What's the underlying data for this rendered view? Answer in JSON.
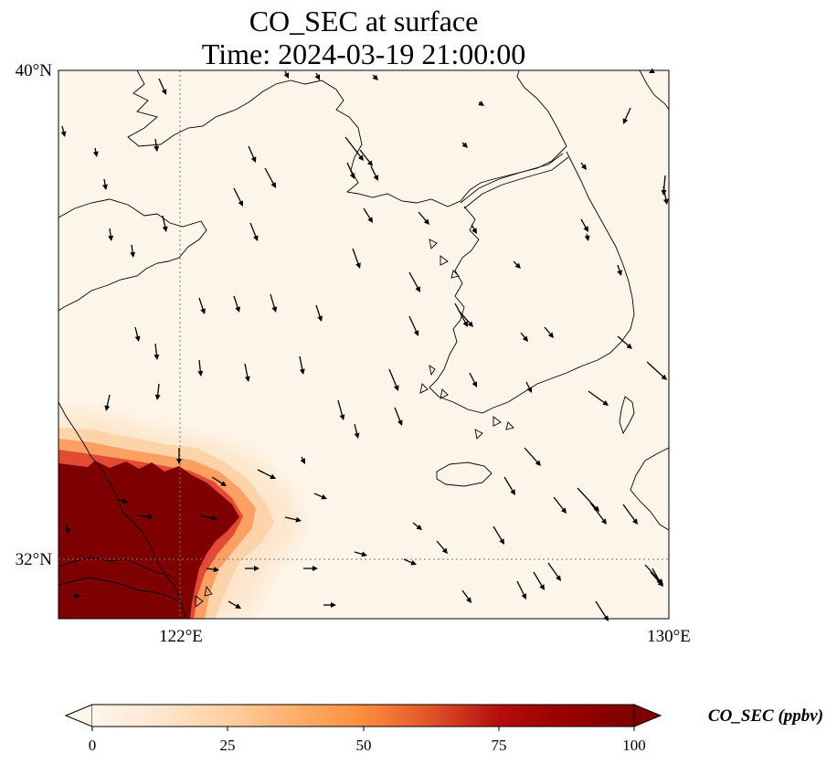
{
  "map": {
    "title_line1": "CO_SEC at surface",
    "title_line2": "Time: 2024-03-19 21:00:00",
    "lat_ticks": [
      {
        "value": 40,
        "label": "40°N"
      },
      {
        "value": 32,
        "label": "32°N"
      }
    ],
    "lon_ticks": [
      {
        "value": 122,
        "label": "122°E"
      },
      {
        "value": 130,
        "label": "130°E"
      }
    ],
    "extent": {
      "lon_min": 120,
      "lon_max": 130,
      "lat_min": 31,
      "lat_max": 40
    },
    "gridlines": {
      "lon": [
        122
      ],
      "lat": [
        32
      ],
      "style": "dotted"
    },
    "field": {
      "variable": "CO_SEC",
      "units": "ppbv",
      "plume_region": "southwest corner (Yangtze River Delta / Shanghai)",
      "max_value": 100
    },
    "wind_vectors": "black arrows, predominantly northwesterly flow"
  },
  "colorbar": {
    "title": "CO_SEC (ppbv)",
    "min": 0,
    "max": 100,
    "ticks": [
      "0",
      "25",
      "50",
      "75",
      "100"
    ],
    "extend": "both",
    "colors": [
      "#fff5eb",
      "#fee6ce",
      "#fdd0a2",
      "#fdae6b",
      "#fd8d3c",
      "#f16913",
      "#d94801",
      "#a63603",
      "#7f0000"
    ]
  }
}
